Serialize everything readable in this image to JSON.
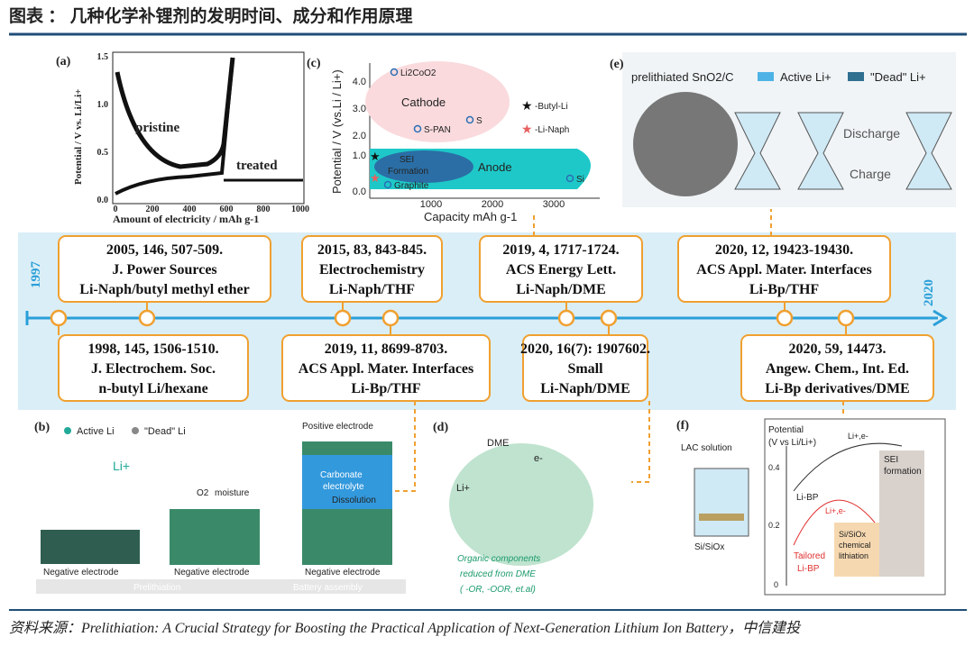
{
  "header": {
    "title": "图表 ： 几种化学补锂剂的发明时间、成分和作用原理"
  },
  "timeline": {
    "start": "1997",
    "end": "2020",
    "top_entries": [
      {
        "citation": "2005, 146, 507-509.",
        "journal": "J. Power Sources",
        "system": "Li-Naph/butyl methyl ether"
      },
      {
        "citation": "2015, 83, 843-845.",
        "journal": "Electrochemistry",
        "system": "Li-Naph/THF"
      },
      {
        "citation": "2019, 4, 1717-1724.",
        "journal": "ACS Energy Lett.",
        "system": "Li-Naph/DME"
      },
      {
        "citation": "2020, 12, 19423-19430.",
        "journal": "ACS Appl. Mater. Interfaces",
        "system": "Li-Bp/THF"
      }
    ],
    "bottom_entries": [
      {
        "citation": "1998, 145, 1506-1510.",
        "journal": "J. Electrochem. Soc.",
        "system": "n-butyl Li/hexane"
      },
      {
        "citation": "2019, 11, 8699-8703.",
        "journal": "ACS Appl. Mater. Interfaces",
        "system": "Li-Bp/THF"
      },
      {
        "citation": "2020, 16(7): 1907602.",
        "journal": "Small",
        "system": "Li-Naph/DME"
      },
      {
        "citation": "2020, 59, 14473.",
        "journal": "Angew. Chem., Int. Ed.",
        "system": "Li-Bp derivatives/DME"
      }
    ]
  },
  "panel_a": {
    "label": "(a)",
    "ylabel": "Potential / V vs. Li/Li+",
    "xlabel": "Amount of electricity / mAh g-1",
    "yticks": [
      "0.0",
      "0.5",
      "1.0",
      "1.5"
    ],
    "xticks": [
      "0",
      "200",
      "400",
      "600",
      "800",
      "1000"
    ],
    "pristine": "pristine",
    "treated": "treated"
  },
  "panel_c": {
    "label": "(c)",
    "ylabel": "Potential / V (vs.Li / Li+)",
    "xlabel": "Capacity mAh g-1",
    "yticks": [
      "4.0",
      "3.0",
      "2.0",
      "1.0",
      "0.0"
    ],
    "xticks": [
      "1000",
      "2000",
      "3000"
    ],
    "cathode": "Cathode",
    "anode": "Anode",
    "sei": [
      "SEI",
      "Formation"
    ],
    "points": [
      "Li2CoO2",
      "S-PAN",
      "S",
      "Graphite",
      "Si"
    ],
    "legend": [
      "-Butyl-Li",
      "-Li-Naph"
    ]
  },
  "panel_e": {
    "label": "(e)",
    "material": "prelithiated SnO2/C",
    "legend": [
      "Active Li+",
      "\"Dead\" Li+"
    ],
    "discharge": "Discharge",
    "charge": "Charge"
  },
  "panel_b": {
    "label": "(b)",
    "legend": [
      "Active Li",
      "\"Dead\" Li"
    ],
    "li": "Li+",
    "o2": "O2",
    "moisture": "moisture",
    "positive": "Positive electrode",
    "electrolyte": [
      "Carbonate",
      "electrolyte"
    ],
    "dissolution": "Dissolution",
    "negative": "Negative electrode",
    "steps": [
      "Prelithiation",
      "Battery assembly"
    ]
  },
  "panel_d": {
    "label": "(d)",
    "dme": "DME",
    "li": "Li+",
    "e": "e-",
    "caption": [
      "Organic components",
      "reduced from DME",
      "( -OR, -OOR, et.al)"
    ]
  },
  "panel_f": {
    "label": "(f)",
    "solution": "LAC solution",
    "material": "Si/SiOx",
    "ylabel": [
      "Potential",
      "(V vs Li/Li+)"
    ],
    "yticks": [
      "0.4",
      "0.2",
      "0"
    ],
    "charge_top": "Li+,e-",
    "sei": [
      "SEI",
      "formation"
    ],
    "libp": "Li-BP",
    "charge_mid": "Li+,e-",
    "lithiation": [
      "Si/SiOx",
      "chemical",
      "lithiation"
    ],
    "tailored": [
      "Tailored",
      "Li-BP"
    ]
  },
  "footer": {
    "source": "资料来源：Prelithiation: A Crucial Strategy for Boosting the Practical Application of Next-Generation Lithium Ion Battery，中信建投"
  }
}
